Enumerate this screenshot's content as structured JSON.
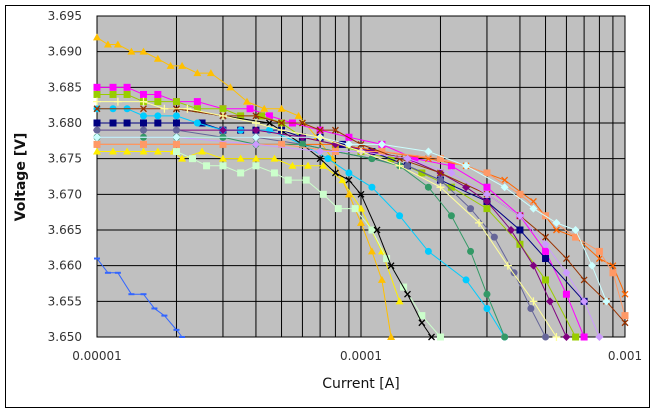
{
  "chart_data": {
    "type": "line",
    "title": "",
    "xlabel": "Current [A]",
    "ylabel": "Voltage [V]",
    "xscale": "log",
    "xlim": [
      1e-05,
      0.001
    ],
    "ylim": [
      3.65,
      3.695
    ],
    "xticks": [
      "0.00001",
      "0.0001",
      "0.001"
    ],
    "yticks": [
      "3.650",
      "3.655",
      "3.660",
      "3.665",
      "3.670",
      "3.675",
      "3.680",
      "3.685",
      "3.690",
      "3.695"
    ],
    "grid": true,
    "legend": "none",
    "plot_background": "#C0C0C0",
    "series": [
      {
        "color": "#FFC000",
        "marker": "triangle",
        "x": [
          1e-05,
          1.1e-05,
          1.2e-05,
          1.35e-05,
          1.5e-05,
          1.7e-05,
          1.9e-05,
          2.1e-05,
          2.4e-05,
          2.7e-05,
          3.2e-05,
          3.7e-05,
          4.3e-05,
          5e-05,
          5.8e-05,
          6.8e-05,
          7.8e-05,
          9e-05,
          0.0001,
          0.00011,
          0.00012,
          0.00013
        ],
        "y": [
          3.692,
          3.691,
          3.691,
          3.69,
          3.69,
          3.689,
          3.688,
          3.688,
          3.687,
          3.687,
          3.685,
          3.683,
          3.682,
          3.682,
          3.681,
          3.678,
          3.675,
          3.67,
          3.666,
          3.662,
          3.658,
          3.65
        ]
      },
      {
        "color": "#3366FF",
        "marker": "dash",
        "x": [
          1e-05,
          1.1e-05,
          1.2e-05,
          1.35e-05,
          1.5e-05,
          1.65e-05,
          1.8e-05,
          2e-05,
          2.1e-05
        ],
        "y": [
          3.661,
          3.659,
          3.659,
          3.656,
          3.656,
          3.654,
          3.653,
          3.651,
          3.65
        ]
      },
      {
        "color": "#FFEE00",
        "marker": "triangle",
        "x": [
          1e-05,
          1.15e-05,
          1.3e-05,
          1.5e-05,
          1.7e-05,
          1.95e-05,
          2.1e-05,
          2.5e-05,
          3e-05,
          3.5e-05,
          4e-05,
          4.7e-05,
          5.5e-05,
          6.3e-05,
          7.2e-05,
          8.5e-05,
          0.0001,
          0.00012,
          0.00014
        ],
        "y": [
          3.676,
          3.676,
          3.676,
          3.676,
          3.676,
          3.676,
          3.675,
          3.676,
          3.675,
          3.675,
          3.675,
          3.675,
          3.674,
          3.674,
          3.674,
          3.672,
          3.668,
          3.662,
          3.655
        ]
      },
      {
        "color": "#CCFFCC",
        "marker": "square",
        "x": [
          2e-05,
          2.3e-05,
          2.6e-05,
          3e-05,
          3.5e-05,
          4e-05,
          4.7e-05,
          5.3e-05,
          6.2e-05,
          7.2e-05,
          8.2e-05,
          9.5e-05,
          0.00011,
          0.000125,
          0.000145,
          0.00017,
          0.0002
        ],
        "y": [
          3.676,
          3.675,
          3.674,
          3.674,
          3.673,
          3.674,
          3.673,
          3.672,
          3.672,
          3.67,
          3.668,
          3.668,
          3.665,
          3.661,
          3.657,
          3.653,
          3.65
        ]
      },
      {
        "color": "#FF00FF",
        "marker": "square",
        "x": [
          1e-05,
          1.15e-05,
          1.3e-05,
          1.5e-05,
          1.7e-05,
          2e-05,
          2.4e-05,
          3e-05,
          3.8e-05,
          4.5e-05,
          5.5e-05,
          7e-05,
          9e-05,
          0.00012,
          0.00016,
          0.00022,
          0.0003,
          0.0004,
          0.0005,
          0.0006,
          0.0007
        ],
        "y": [
          3.685,
          3.685,
          3.685,
          3.684,
          3.684,
          3.683,
          3.683,
          3.682,
          3.682,
          3.681,
          3.68,
          3.679,
          3.678,
          3.677,
          3.675,
          3.674,
          3.671,
          3.667,
          3.662,
          3.656,
          3.65
        ]
      },
      {
        "color": "#99CC00",
        "marker": "square",
        "x": [
          1e-05,
          1.15e-05,
          1.3e-05,
          1.5e-05,
          1.7e-05,
          2e-05,
          2.4e-05,
          3e-05,
          3.5e-05,
          4.2e-05,
          5e-05,
          6e-05,
          8e-05,
          0.0001,
          0.00013,
          0.00017,
          0.00022,
          0.0003,
          0.0004,
          0.0005,
          0.00065
        ],
        "y": [
          3.684,
          3.684,
          3.684,
          3.683,
          3.683,
          3.683,
          3.682,
          3.682,
          3.681,
          3.681,
          3.68,
          3.678,
          3.677,
          3.676,
          3.675,
          3.673,
          3.671,
          3.668,
          3.663,
          3.658,
          3.65
        ]
      },
      {
        "color": "#000080",
        "marker": "square",
        "x": [
          1e-05,
          1.15e-05,
          1.3e-05,
          1.5e-05,
          1.7e-05,
          2e-05,
          2.5e-05,
          3e-05,
          3.5e-05,
          4e-05,
          5e-05,
          6e-05,
          7e-05,
          8.5e-05,
          0.00011,
          0.00015,
          0.0002,
          0.0003,
          0.0004,
          0.0005,
          0.0007
        ],
        "y": [
          3.68,
          3.68,
          3.68,
          3.68,
          3.68,
          3.68,
          3.68,
          3.679,
          3.679,
          3.679,
          3.679,
          3.678,
          3.678,
          3.677,
          3.676,
          3.674,
          3.672,
          3.669,
          3.665,
          3.661,
          3.655
        ]
      },
      {
        "color": "#00CCFF",
        "marker": "circle",
        "x": [
          1e-05,
          1.15e-05,
          1.3e-05,
          1.5e-05,
          1.7e-05,
          2e-05,
          2.4e-05,
          3e-05,
          3.5e-05,
          4.5e-05,
          6e-05,
          7.5e-05,
          9e-05,
          0.00011,
          0.00014,
          0.00018,
          0.00025,
          0.0003,
          0.00035
        ],
        "y": [
          3.682,
          3.682,
          3.682,
          3.681,
          3.681,
          3.681,
          3.68,
          3.679,
          3.679,
          3.679,
          3.677,
          3.675,
          3.673,
          3.671,
          3.667,
          3.662,
          3.658,
          3.654,
          3.65
        ]
      },
      {
        "color": "#000000",
        "marker": "x",
        "x": [
          2e-05,
          3e-05,
          4.5e-05,
          6e-05,
          7e-05,
          8e-05,
          9e-05,
          0.0001,
          0.000115,
          0.00013,
          0.00015,
          0.00017,
          0.000185
        ],
        "y": [
          3.682,
          3.681,
          3.68,
          3.677,
          3.675,
          3.673,
          3.672,
          3.67,
          3.665,
          3.66,
          3.656,
          3.652,
          3.65
        ]
      },
      {
        "color": "#FF6600",
        "marker": "x",
        "x": [
          1e-05,
          1.5e-05,
          2e-05,
          3e-05,
          5e-05,
          8e-05,
          0.00012,
          0.00018,
          0.00025,
          0.00035,
          0.00045,
          0.00055,
          0.00065,
          0.0008,
          0.0009,
          0.001
        ],
        "y": [
          3.677,
          3.677,
          3.677,
          3.677,
          3.677,
          3.677,
          3.676,
          3.675,
          3.674,
          3.672,
          3.669,
          3.665,
          3.664,
          3.661,
          3.66,
          3.656
        ]
      },
      {
        "color": "#800080",
        "marker": "diamond",
        "x": [
          1e-05,
          1.5e-05,
          2e-05,
          3e-05,
          4e-05,
          6e-05,
          8e-05,
          0.00011,
          0.00015,
          0.0002,
          0.00025,
          0.0003,
          0.00037,
          0.00045,
          0.00052,
          0.0006
        ],
        "y": [
          3.679,
          3.679,
          3.679,
          3.679,
          3.679,
          3.678,
          3.677,
          3.676,
          3.675,
          3.673,
          3.671,
          3.669,
          3.665,
          3.66,
          3.655,
          3.65
        ]
      },
      {
        "color": "#666699",
        "marker": "circle",
        "x": [
          1e-05,
          1.5e-05,
          2e-05,
          3e-05,
          4e-05,
          6e-05,
          8e-05,
          0.00011,
          0.00015,
          0.0002,
          0.00026,
          0.00032,
          0.00038,
          0.00044,
          0.0005
        ],
        "y": [
          3.679,
          3.679,
          3.679,
          3.678,
          3.678,
          3.677,
          3.676,
          3.675,
          3.674,
          3.672,
          3.668,
          3.664,
          3.659,
          3.654,
          3.65
        ]
      },
      {
        "color": "#339966",
        "marker": "circle",
        "x": [
          1e-05,
          1.5e-05,
          2e-05,
          3e-05,
          4e-05,
          6e-05,
          8e-05,
          0.00011,
          0.00014,
          0.00018,
          0.00022,
          0.00026,
          0.0003,
          0.00035
        ],
        "y": [
          3.678,
          3.678,
          3.678,
          3.678,
          3.677,
          3.677,
          3.676,
          3.675,
          3.674,
          3.671,
          3.667,
          3.662,
          3.656,
          3.65
        ]
      },
      {
        "color": "#FF9966",
        "marker": "square",
        "x": [
          1e-05,
          1.5e-05,
          2e-05,
          3e-05,
          5e-05,
          8e-05,
          0.00012,
          0.0002,
          0.0003,
          0.0004,
          0.0005,
          0.00065,
          0.0008,
          0.0009,
          0.001
        ],
        "y": [
          3.677,
          3.677,
          3.677,
          3.677,
          3.677,
          3.676,
          3.676,
          3.675,
          3.673,
          3.67,
          3.667,
          3.664,
          3.662,
          3.659,
          3.653
        ]
      },
      {
        "color": "#993300",
        "marker": "x",
        "x": [
          1e-05,
          1.5e-05,
          2e-05,
          3e-05,
          4e-05,
          5e-05,
          6e-05,
          7e-05,
          8e-05,
          0.0001,
          0.00014,
          0.0002,
          0.0003,
          0.0004,
          0.0005,
          0.0006,
          0.0007,
          0.00085,
          0.001
        ],
        "y": [
          3.682,
          3.682,
          3.682,
          3.681,
          3.681,
          3.68,
          3.68,
          3.679,
          3.679,
          3.677,
          3.675,
          3.673,
          3.67,
          3.667,
          3.664,
          3.661,
          3.658,
          3.655,
          3.652
        ]
      },
      {
        "color": "#CC99FF",
        "marker": "diamond",
        "x": [
          1e-05,
          2e-05,
          4e-05,
          7e-05,
          0.0001,
          0.00015,
          0.00022,
          0.0003,
          0.0004,
          0.0005,
          0.0006,
          0.0007,
          0.0008
        ],
        "y": [
          3.678,
          3.678,
          3.677,
          3.676,
          3.676,
          3.675,
          3.673,
          3.67,
          3.667,
          3.663,
          3.659,
          3.655,
          3.65
        ]
      },
      {
        "color": "#CCFFFF",
        "marker": "diamond",
        "x": [
          1e-05,
          2e-05,
          4e-05,
          7e-05,
          9e-05,
          0.00012,
          0.00018,
          0.00025,
          0.00035,
          0.00045,
          0.00055,
          0.00065,
          0.00075,
          0.00085
        ],
        "y": [
          3.678,
          3.678,
          3.678,
          3.678,
          3.677,
          3.677,
          3.676,
          3.674,
          3.671,
          3.668,
          3.666,
          3.665,
          3.66,
          3.655
        ]
      },
      {
        "color": "#FFFF99",
        "marker": "plus",
        "x": [
          1e-05,
          1.2e-05,
          1.5e-05,
          1.8e-05,
          2.2e-05,
          3e-05,
          4e-05,
          5e-05,
          7e-05,
          0.0001,
          0.00014,
          0.0002,
          0.00028,
          0.00036,
          0.00045,
          0.00055
        ],
        "y": [
          3.683,
          3.683,
          3.683,
          3.682,
          3.682,
          3.681,
          3.68,
          3.679,
          3.678,
          3.676,
          3.674,
          3.671,
          3.666,
          3.66,
          3.655,
          3.65
        ]
      }
    ]
  }
}
